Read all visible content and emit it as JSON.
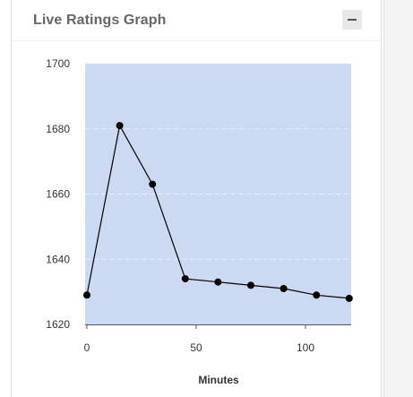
{
  "panel": {
    "title": "Live Ratings Graph",
    "collapse_icon": "minus-icon"
  },
  "colors": {
    "plot_background": "#ccd9f2",
    "line": "#000000",
    "point": "#000000",
    "grid": "#e6ecf8"
  },
  "chart_data": {
    "type": "line",
    "title": "",
    "xlabel": "Minutes",
    "ylabel": "",
    "xlim": [
      0,
      120
    ],
    "ylim": [
      1620,
      1700
    ],
    "xticks": [
      0,
      50,
      100
    ],
    "yticks": [
      1620,
      1640,
      1660,
      1680,
      1700
    ],
    "grid": true,
    "series": [
      {
        "x": [
          0,
          15,
          30,
          45,
          60,
          75,
          90,
          105,
          120
        ],
        "y": [
          1629,
          1681,
          1663,
          1634,
          1633,
          1632,
          1631,
          1629,
          1628
        ]
      }
    ]
  }
}
